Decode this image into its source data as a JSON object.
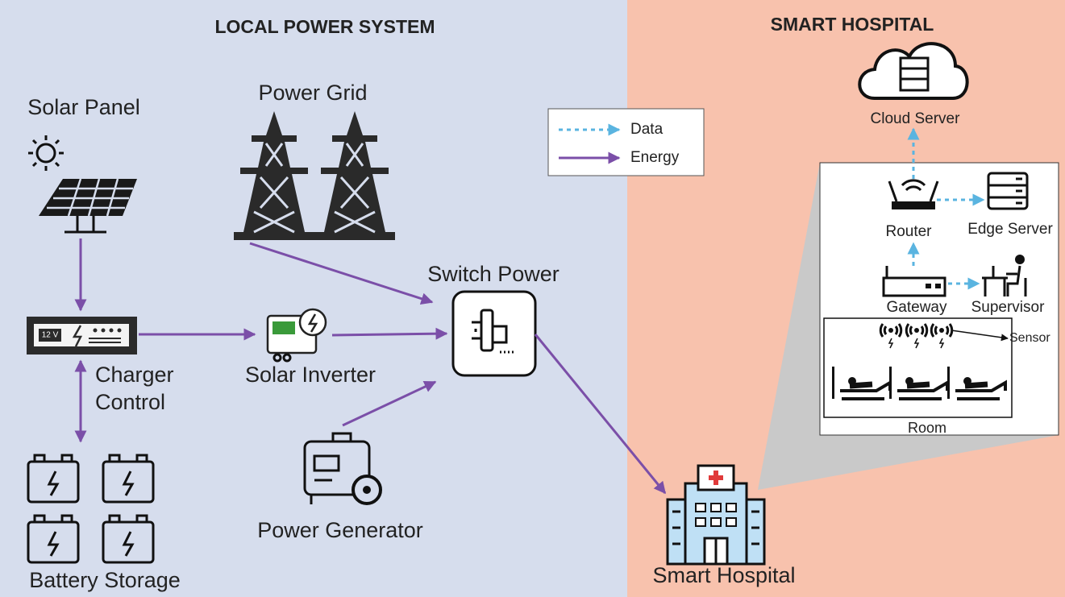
{
  "panels": [
    {
      "title": "LOCAL POWER SYSTEM"
    },
    {
      "title": "SMART HOSPITAL"
    }
  ],
  "legend": [
    {
      "label": "Data"
    },
    {
      "label": "Energy"
    }
  ],
  "nodes": [
    {
      "label": "Solar Panel"
    },
    {
      "label": "Power Grid"
    },
    {
      "label_lines": [
        "Charger",
        "Control"
      ],
      "badge": "12 V"
    },
    {
      "label": "Solar Inverter"
    },
    {
      "label": "Switch Power"
    },
    {
      "label": "Power Generator"
    },
    {
      "label": "Battery Storage"
    },
    {
      "label": "Smart Hospital"
    },
    {
      "label": "Cloud Server"
    },
    {
      "label": "Router"
    },
    {
      "label": "Edge Server"
    },
    {
      "label": "Gateway"
    },
    {
      "label": "Supervisor"
    },
    {
      "label": "Sensor"
    },
    {
      "label": "Room"
    }
  ]
}
